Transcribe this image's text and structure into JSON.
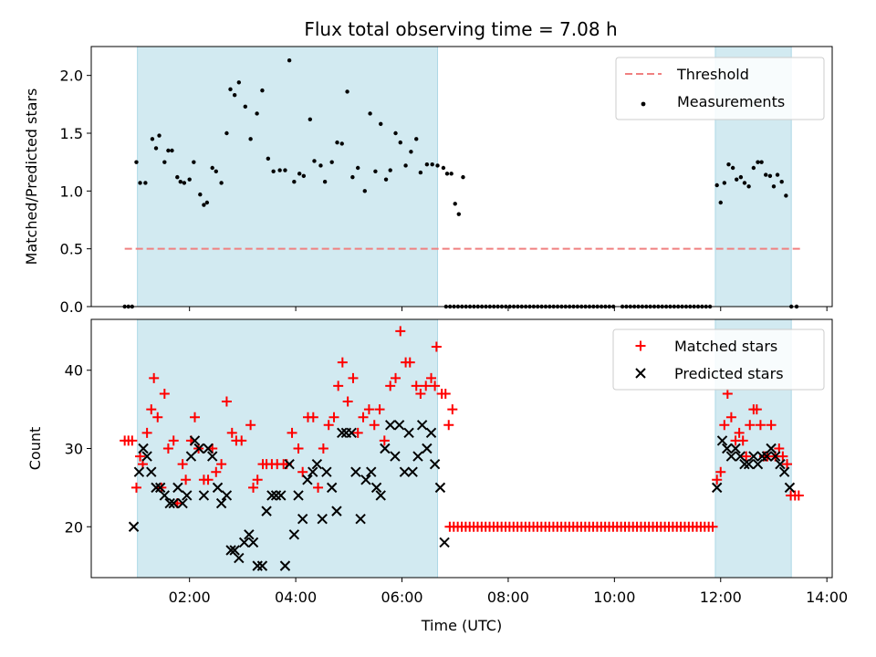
{
  "title": "Flux total observing time = 7.08 h",
  "x_axis": {
    "label": "Time (UTC)",
    "ticks": [
      2,
      4,
      6,
      8,
      10,
      12,
      14
    ],
    "tick_labels": [
      "02:00",
      "04:00",
      "06:00",
      "08:00",
      "10:00",
      "12:00",
      "14:00"
    ]
  },
  "chart_data": [
    {
      "type": "scatter",
      "ylabel": "Matched/Predicted stars",
      "ylim": [
        0,
        2.25
      ],
      "yticks": [
        0.0,
        0.5,
        1.0,
        1.5,
        2.0
      ],
      "ytick_labels": [
        "0.0",
        "0.5",
        "1.0",
        "1.5",
        "2.0"
      ],
      "xlim": [
        0.15,
        14.1
      ],
      "legend_position": "top-right",
      "shaded_spans": [
        [
          1.02,
          6.67
        ],
        [
          11.9,
          13.33
        ]
      ],
      "shade_color": "#add8e6",
      "threshold": {
        "name": "Threshold",
        "y": 0.5,
        "x_range": [
          0.78,
          13.5
        ],
        "color": "#f08080"
      },
      "series": [
        {
          "name": "Measurements",
          "marker": "dot",
          "color": "#000000",
          "x": [
            0.78,
            0.85,
            0.92,
            1.0,
            1.07,
            1.17,
            1.3,
            1.37,
            1.43,
            1.53,
            1.6,
            1.67,
            1.77,
            1.83,
            1.9,
            2.0,
            2.08,
            2.2,
            2.27,
            2.33,
            2.43,
            2.5,
            2.6,
            2.7,
            2.77,
            2.85,
            2.93,
            3.05,
            3.15,
            3.27,
            3.37,
            3.48,
            3.58,
            3.7,
            3.8,
            3.88,
            3.97,
            4.07,
            4.15,
            4.27,
            4.35,
            4.47,
            4.55,
            4.68,
            4.78,
            4.87,
            4.97,
            5.07,
            5.17,
            5.3,
            5.4,
            5.5,
            5.6,
            5.7,
            5.78,
            5.88,
            5.97,
            6.07,
            6.17,
            6.27,
            6.35,
            6.47,
            6.57,
            6.67,
            6.78
          ],
          "y": [
            0.0,
            0.0,
            0.0,
            1.25,
            1.07,
            1.07,
            1.45,
            1.37,
            1.48,
            1.25,
            1.35,
            1.35,
            1.12,
            1.08,
            1.07,
            1.1,
            1.25,
            0.97,
            0.88,
            0.9,
            1.2,
            1.17,
            1.07,
            1.5,
            1.88,
            1.83,
            1.94,
            1.73,
            1.45,
            1.67,
            1.87,
            1.28,
            1.17,
            1.18,
            1.18,
            2.13,
            1.08,
            1.15,
            1.13,
            1.62,
            1.26,
            1.22,
            1.08,
            1.25,
            1.42,
            1.41,
            1.86,
            1.12,
            1.2,
            1.0,
            1.67,
            1.17,
            1.58,
            1.1,
            1.18,
            1.5,
            1.42,
            1.22,
            1.34,
            1.45,
            1.16,
            1.23,
            1.23,
            1.22,
            1.2
          ],
          "x2": [
            6.85,
            6.93,
            7.0,
            7.07,
            7.15,
            13.33,
            13.43
          ],
          "y2": [
            1.15,
            1.15,
            0.89,
            0.8,
            1.12,
            0.0,
            0.0
          ],
          "x_late": [
            11.93,
            12.0,
            12.07,
            12.15,
            12.23,
            12.3,
            12.38,
            12.45,
            12.53,
            12.62,
            12.7,
            12.77,
            12.85,
            12.93,
            13.0,
            13.07,
            13.15,
            13.23
          ],
          "y_late": [
            1.05,
            0.9,
            1.07,
            1.23,
            1.2,
            1.1,
            1.12,
            1.07,
            1.04,
            1.2,
            1.25,
            1.25,
            1.14,
            1.13,
            1.04,
            1.14,
            1.08,
            0.96
          ],
          "zero_run": [
            6.83,
            9.98,
            10.15,
            11.85,
            0.075
          ]
        }
      ]
    },
    {
      "type": "scatter",
      "xlabel": "Time (UTC)",
      "ylabel": "Count",
      "ylim": [
        13.5,
        46.5
      ],
      "yticks": [
        20,
        30,
        40
      ],
      "ytick_labels": [
        "20",
        "30",
        "40"
      ],
      "xlim": [
        0.15,
        14.1
      ],
      "legend_position": "top-right",
      "shaded_spans": [
        [
          1.02,
          6.67
        ],
        [
          11.9,
          13.33
        ]
      ],
      "series": [
        {
          "name": "Matched stars",
          "marker": "plus",
          "color": "#ff0000",
          "x": [
            0.78,
            0.85,
            0.92,
            1.0,
            1.07,
            1.12,
            1.2,
            1.28,
            1.33,
            1.4,
            1.47,
            1.53,
            1.6,
            1.7,
            1.77,
            1.87,
            1.93,
            2.03,
            2.1,
            2.17,
            2.27,
            2.35,
            2.43,
            2.5,
            2.6,
            2.7,
            2.8,
            2.88,
            2.98,
            3.15,
            3.2,
            3.28,
            3.38,
            3.45,
            3.55,
            3.65,
            3.77,
            3.83,
            3.93,
            4.05,
            4.13,
            4.23,
            4.33,
            4.42,
            4.52,
            4.62,
            4.72,
            4.8,
            4.88,
            4.98,
            5.08,
            5.17,
            5.27,
            5.38,
            5.48,
            5.58,
            5.67,
            5.78,
            5.88,
            5.97,
            6.07,
            6.15,
            6.27,
            6.35,
            6.45,
            6.55,
            6.62
          ],
          "y": [
            31,
            31,
            31,
            25,
            29,
            28,
            32,
            35,
            39,
            34,
            25,
            37,
            30,
            31,
            23,
            28,
            26,
            31,
            34,
            30,
            26,
            26,
            30,
            27,
            28,
            36,
            32,
            31,
            31,
            33,
            25,
            26,
            28,
            28,
            28,
            28,
            28,
            28,
            32,
            30,
            27,
            34,
            34,
            25,
            30,
            33,
            34,
            38,
            41,
            36,
            39,
            32,
            34,
            35,
            33,
            35,
            31,
            38,
            39,
            45,
            41,
            41,
            38,
            37,
            38,
            39,
            38
          ],
          "x2": [
            6.65,
            6.75,
            6.82,
            6.88,
            6.95,
            11.93,
            12.0,
            12.07,
            12.13,
            12.2,
            12.28,
            12.35,
            12.42,
            12.48,
            12.55,
            12.62,
            12.68,
            12.75,
            12.82,
            12.88,
            12.95,
            13.03,
            13.1,
            13.17,
            13.25,
            13.32,
            13.4,
            13.47
          ],
          "y2": [
            43,
            37,
            37,
            33,
            35,
            26,
            27,
            33,
            37,
            34,
            31,
            32,
            31,
            29,
            33,
            35,
            35,
            33,
            29,
            29,
            33,
            29,
            30,
            29,
            28,
            24,
            24,
            24
          ],
          "flat_run": [
            6.9,
            11.87,
            0.075,
            20
          ]
        },
        {
          "name": "Predicted stars",
          "marker": "x",
          "color": "#000000",
          "x": [
            0.95,
            1.05,
            1.13,
            1.2,
            1.28,
            1.37,
            1.45,
            1.53,
            1.63,
            1.7,
            1.78,
            1.87,
            1.95,
            2.03,
            2.1,
            2.18,
            2.27,
            2.35,
            2.43,
            2.53,
            2.6,
            2.7,
            2.78,
            2.85,
            2.93,
            3.03,
            3.12,
            3.2,
            3.28,
            3.37,
            3.45,
            3.55,
            3.63,
            3.72,
            3.8,
            3.88,
            3.97,
            4.05,
            4.13,
            4.22,
            4.32,
            4.4,
            4.5,
            4.58,
            4.68,
            4.77,
            4.87,
            4.95,
            5.05,
            5.13,
            5.22,
            5.32,
            5.42,
            5.52,
            5.6,
            5.68,
            5.78,
            5.87,
            5.95,
            6.05,
            6.13,
            6.2,
            6.3,
            6.38,
            6.47,
            6.55,
            6.62,
            6.72
          ],
          "y": [
            20,
            27,
            30,
            29,
            27,
            25,
            25,
            24,
            23,
            23,
            25,
            23,
            24,
            29,
            31,
            30,
            24,
            30,
            29,
            25,
            23,
            24,
            17,
            17,
            16,
            18,
            19,
            18,
            15,
            15,
            22,
            24,
            24,
            24,
            15,
            28,
            19,
            24,
            21,
            26,
            27,
            28,
            21,
            27,
            25,
            22,
            32,
            32,
            32,
            27,
            21,
            26,
            27,
            25,
            24,
            30,
            33,
            29,
            33,
            27,
            32,
            27,
            29,
            33,
            30,
            32,
            28,
            25
          ],
          "x2": [
            6.8,
            11.93,
            12.03,
            12.12,
            12.2,
            12.28,
            12.37,
            12.45,
            12.53,
            12.62,
            12.7,
            12.78,
            12.87,
            12.95,
            13.03,
            13.12,
            13.2,
            13.3
          ],
          "y2": [
            18,
            25,
            31,
            30,
            29,
            30,
            29,
            28,
            28,
            29,
            28,
            29,
            29,
            30,
            29,
            28,
            27,
            25
          ]
        }
      ]
    }
  ]
}
